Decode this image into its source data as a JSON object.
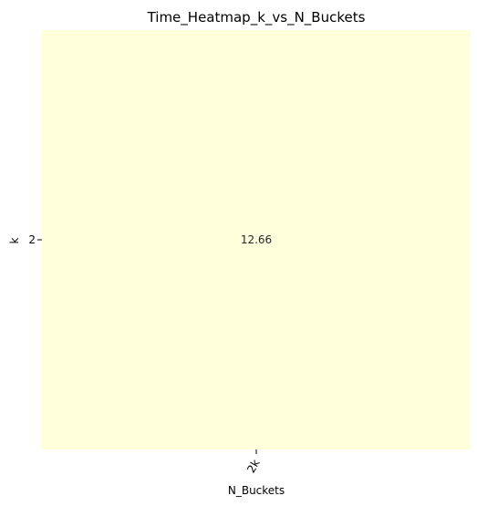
{
  "chart_data": {
    "type": "heatmap",
    "title": "Time_Heatmap_k_vs_N_Buckets",
    "xlabel": "N_Buckets",
    "ylabel": "k",
    "x_categories": [
      "2k"
    ],
    "y_categories": [
      "2"
    ],
    "values": [
      [
        12.66
      ]
    ],
    "value_labels": [
      [
        "12.66"
      ]
    ],
    "colormap": "YlOrRd",
    "cell_color": "#ffffdc",
    "colorbar": false,
    "grid": false
  }
}
